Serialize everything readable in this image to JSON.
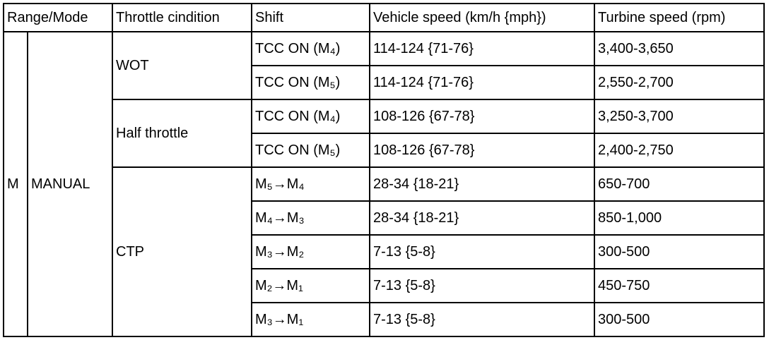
{
  "table": {
    "header": [
      "Range/Mode",
      "Throttle cindition",
      "Shift",
      "Vehicle speed (km/h {mph})",
      "Turbine speed (rpm)"
    ],
    "range": "M",
    "mode": "MANUAL",
    "groups": [
      {
        "throttle": "WOT",
        "rows": [
          {
            "shift": "TCC ON (M₄)",
            "vehicle_speed": "114-124 {71-76}",
            "turbine_speed": "3,400-3,650"
          },
          {
            "shift": "TCC ON (M₅)",
            "vehicle_speed": "114-124 {71-76}",
            "turbine_speed": "2,550-2,700"
          }
        ]
      },
      {
        "throttle": "Half throttle",
        "rows": [
          {
            "shift": "TCC ON (M₄)",
            "vehicle_speed": "108-126 {67-78}",
            "turbine_speed": "3,250-3,700"
          },
          {
            "shift": "TCC ON (M₅)",
            "vehicle_speed": "108-126 {67-78}",
            "turbine_speed": "2,400-2,750"
          }
        ]
      },
      {
        "throttle": "CTP",
        "rows": [
          {
            "shift": "M₅→M₄",
            "vehicle_speed": "28-34 {18-21}",
            "turbine_speed": "650-700"
          },
          {
            "shift": "M₄→M₃",
            "vehicle_speed": "28-34 {18-21}",
            "turbine_speed": "850-1,000"
          },
          {
            "shift": "M₃→M₂",
            "vehicle_speed": "7-13 {5-8}",
            "turbine_speed": "300-500"
          },
          {
            "shift": "M₂→M₁",
            "vehicle_speed": "7-13 {5-8}",
            "turbine_speed": "450-750"
          },
          {
            "shift": "M₃→M₁",
            "vehicle_speed": "7-13 {5-8}",
            "turbine_speed": "300-500"
          }
        ]
      }
    ]
  }
}
